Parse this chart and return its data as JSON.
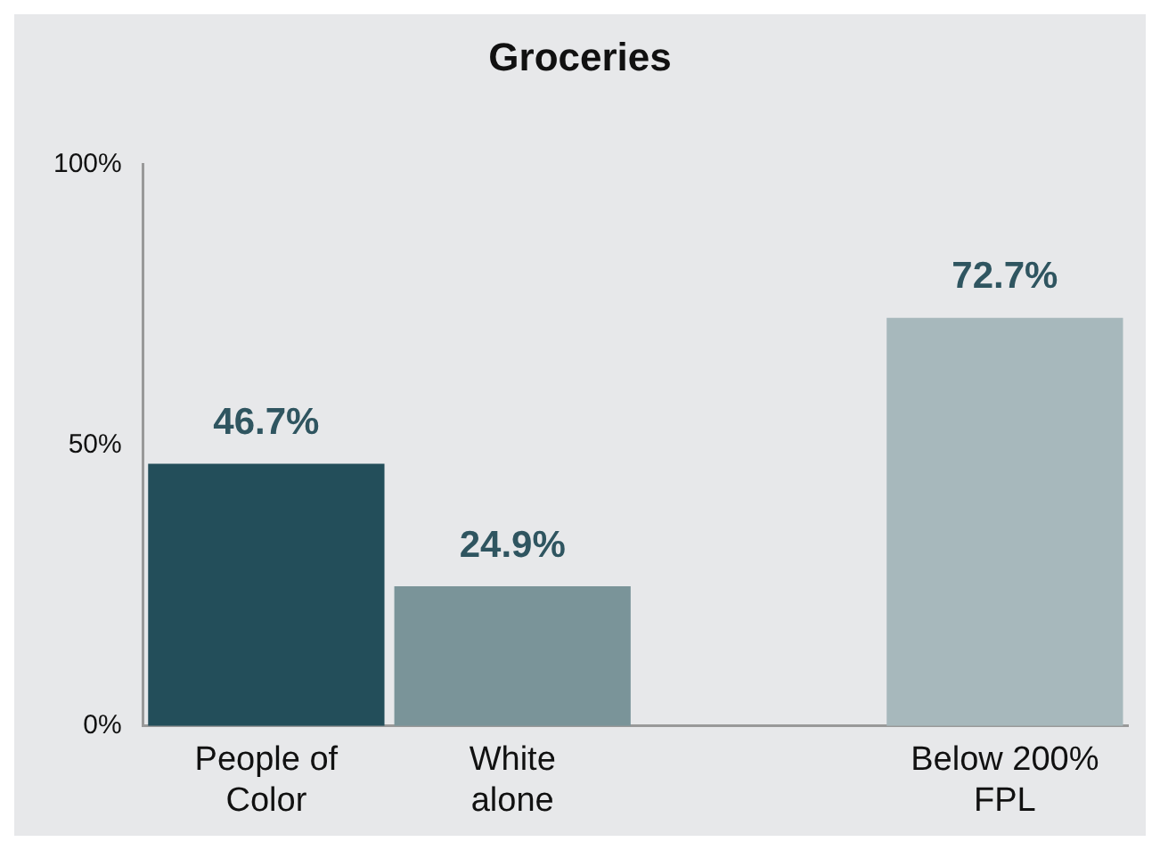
{
  "chart_data": {
    "type": "bar",
    "title": "Groceries",
    "categories": [
      "People of Color",
      "White alone",
      null,
      "Below 200% FPL"
    ],
    "values": [
      46.7,
      24.9,
      null,
      72.7
    ],
    "colors": [
      "#234e5a",
      "#7a9499",
      null,
      "#a7b8bc"
    ],
    "ylim": [
      0,
      100
    ],
    "yticks": [
      {
        "value": 0,
        "label": "0%"
      },
      {
        "value": 50,
        "label": "50%"
      },
      {
        "value": 100,
        "label": "100%"
      }
    ],
    "value_labels": [
      "46.7%",
      "24.9%",
      null,
      "72.7%"
    ],
    "grid": false,
    "legend": false
  }
}
